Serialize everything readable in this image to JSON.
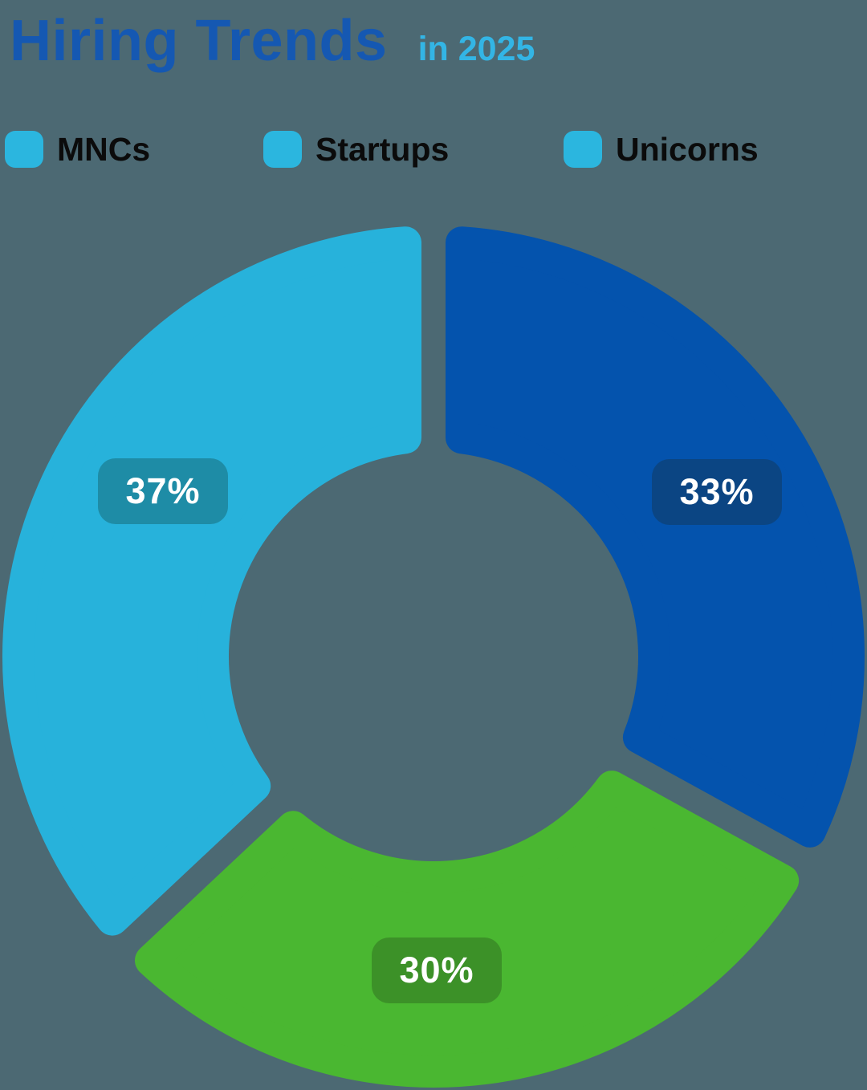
{
  "page": {
    "background_color": "#4C6973"
  },
  "header": {
    "title": "Hiring Trends",
    "subtitle": "in 2025",
    "title_color": "#1558B2",
    "subtitle_color": "#33B5E5"
  },
  "legend": {
    "swatch_color": "#2BB6DF",
    "text_color": "#0B0B0B",
    "items": [
      {
        "label": "MNCs"
      },
      {
        "label": "Startups"
      },
      {
        "label": "Unicorns"
      }
    ]
  },
  "chart_data": {
    "type": "pie",
    "subtype": "donut",
    "title": "Hiring Trends",
    "subtitle": "in 2025",
    "unit": "percent",
    "total": 100,
    "start_angle": "top",
    "direction": "clockwise",
    "legend_position": "top",
    "categories": [
      "MNCs",
      "Startups",
      "Unicorns"
    ],
    "segments": [
      {
        "label": "33%",
        "value": 33,
        "color": "#0453AD",
        "badge_color": "#0B4583"
      },
      {
        "label": "30%",
        "value": 30,
        "color": "#4AB731",
        "badge_color": "#3C9128"
      },
      {
        "label": "37%",
        "value": 37,
        "color": "#27B2DB",
        "badge_color": "#1E8CA6"
      }
    ]
  }
}
